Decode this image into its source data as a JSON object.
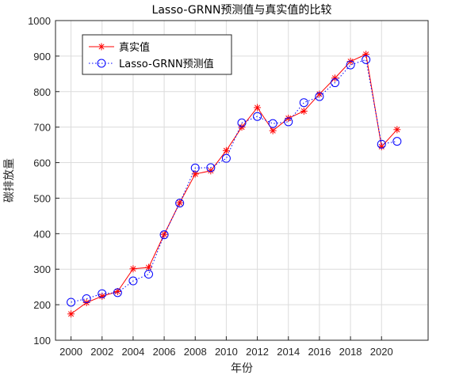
{
  "chart_data": {
    "type": "line",
    "title": "Lasso-GRNN预测值与真实值的比较",
    "xlabel": "年份",
    "ylabel": "碳排放量",
    "xlim": [
      1999,
      2023
    ],
    "ylim": [
      100,
      1000
    ],
    "x_ticks": [
      2000,
      2002,
      2004,
      2006,
      2008,
      2010,
      2012,
      2014,
      2016,
      2018,
      2020
    ],
    "y_ticks": [
      100,
      200,
      300,
      400,
      500,
      600,
      700,
      800,
      900,
      1000
    ],
    "grid": true,
    "legend_position": "top-left",
    "series": [
      {
        "name": "真实值",
        "color": "#ff0000",
        "marker": "asterisk",
        "line_style": "solid",
        "x": [
          2000,
          2001,
          2002,
          2003,
          2004,
          2005,
          2006,
          2007,
          2008,
          2009,
          2010,
          2011,
          2012,
          2013,
          2014,
          2015,
          2016,
          2017,
          2018,
          2019,
          2020,
          2021
        ],
        "values": [
          174,
          206,
          224,
          237,
          301,
          305,
          398,
          487,
          568,
          577,
          634,
          700,
          755,
          690,
          725,
          745,
          793,
          838,
          885,
          905,
          645,
          693
        ]
      },
      {
        "name": "Lasso-GRNN预测值",
        "color": "#0000ff",
        "marker": "circle",
        "line_style": "dotted",
        "x": [
          2000,
          2001,
          2002,
          2003,
          2004,
          2005,
          2006,
          2007,
          2008,
          2009,
          2010,
          2011,
          2012,
          2013,
          2014,
          2015,
          2016,
          2017,
          2018,
          2019,
          2020,
          2021
        ],
        "values": [
          207,
          217,
          231,
          234,
          267,
          286,
          397,
          486,
          585,
          586,
          612,
          712,
          730,
          710,
          715,
          769,
          786,
          825,
          875,
          890,
          652,
          660
        ]
      }
    ]
  }
}
